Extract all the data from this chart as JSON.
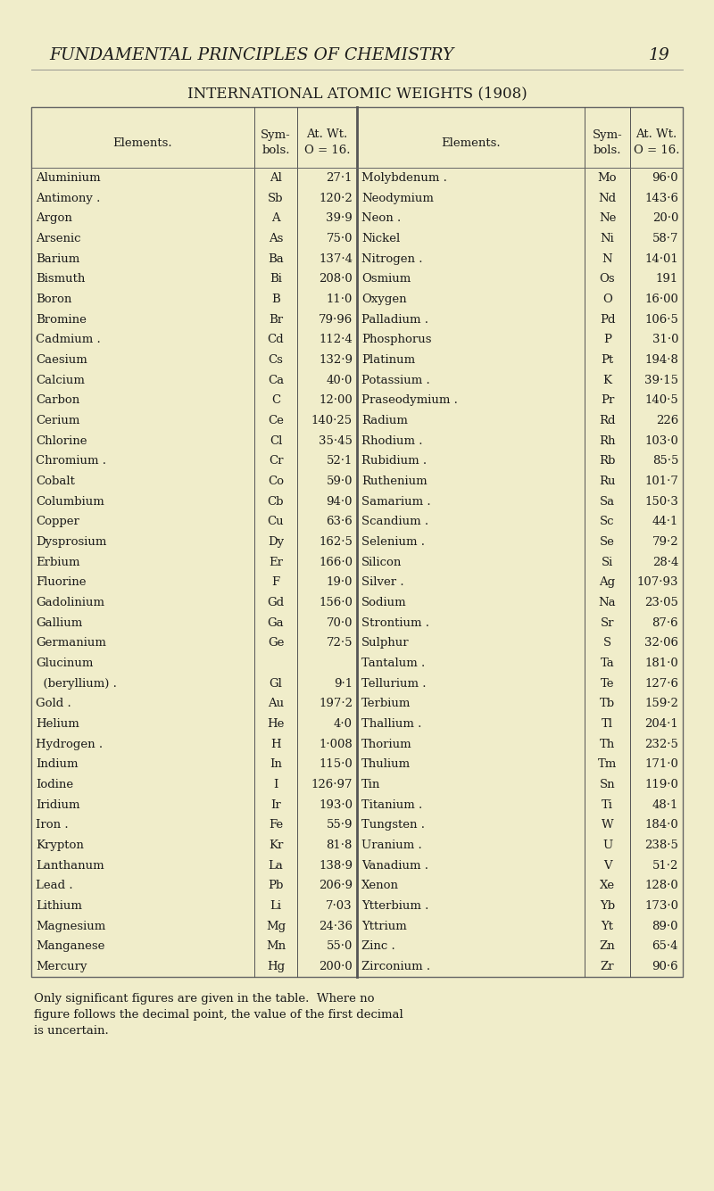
{
  "bg_color": "#f0edca",
  "page_title": "FUNDAMENTAL PRINCIPLES OF CHEMISTRY",
  "page_number": "19",
  "table_title": "INTERNATIONAL ATOMIC WEIGHTS (1908)",
  "left_data": [
    [
      "Aluminium",
      ".",
      "Al",
      "27·1"
    ],
    [
      "Antimony .",
      ".",
      "Sb",
      "120·2"
    ],
    [
      "Argon",
      ". .",
      "A",
      "39·9"
    ],
    [
      "Arsenic",
      ". .",
      "As",
      "75·0"
    ],
    [
      "Barium",
      ". .",
      "Ba",
      "137·4"
    ],
    [
      "Bismuth",
      ". .",
      "Bi",
      "208·0"
    ],
    [
      "Boron",
      ". .",
      "B",
      "11·0"
    ],
    [
      "Bromine",
      ". .",
      "Br",
      "79·96"
    ],
    [
      "Cadmium .",
      ".",
      "Cd",
      "112·4"
    ],
    [
      "Caesium",
      ". .",
      "Cs",
      "132·9"
    ],
    [
      "Calcium",
      ". .",
      "Ca",
      "40·0"
    ],
    [
      "Carbon",
      ". .",
      "C",
      "12·00"
    ],
    [
      "Cerium",
      ". .",
      "Ce",
      "140·25"
    ],
    [
      "Chlorine",
      ". .",
      "Cl",
      "35·45"
    ],
    [
      "Chromium .",
      ".",
      "Cr",
      "52·1"
    ],
    [
      "Cobalt",
      ".",
      "Co",
      "59·0"
    ],
    [
      "Columbium",
      ".",
      "Cb",
      "94·0"
    ],
    [
      "Copper",
      ". .",
      "Cu",
      "63·6"
    ],
    [
      "Dysprosium",
      ".",
      "Dy",
      "162·5"
    ],
    [
      "Erbium",
      ". .",
      "Er",
      "166·0"
    ],
    [
      "Fluorine",
      ". .",
      "F",
      "19·0"
    ],
    [
      "Gadolinium",
      ".",
      "Gd",
      "156·0"
    ],
    [
      "Gallium",
      ". .",
      "Ga",
      "70·0"
    ],
    [
      "Germanium",
      ".",
      "Ge",
      "72·5"
    ],
    [
      "Glucinum",
      "",
      "",
      ""
    ],
    [
      "  (beryllium) .",
      ".",
      "Gl",
      "9·1"
    ],
    [
      "Gold .",
      ". .",
      "Au",
      "197·2"
    ],
    [
      "Helium",
      ". .",
      "He",
      "4·0"
    ],
    [
      "Hydrogen .",
      ".",
      "H",
      "1·008"
    ],
    [
      "Indium",
      ". .",
      "In",
      "115·0"
    ],
    [
      "Iodine",
      ". .",
      "I",
      "126·97"
    ],
    [
      "Iridium",
      ". .",
      "Ir",
      "193·0"
    ],
    [
      "Iron .",
      ". .",
      "Fe",
      "55·9"
    ],
    [
      "Krypton",
      ".",
      "Kr",
      "81·8"
    ],
    [
      "Lanthanum",
      ".",
      "La",
      "138·9"
    ],
    [
      "Lead .",
      ". .",
      "Pb",
      "206·9"
    ],
    [
      "Lithium",
      ". .",
      "Li",
      "7·03"
    ],
    [
      "Magnesium",
      ".",
      "Mg",
      "24·36"
    ],
    [
      "Manganese",
      ".",
      "Mn",
      "55·0"
    ],
    [
      "Mercury",
      ". .",
      "Hg",
      "200·0"
    ]
  ],
  "right_data": [
    [
      "Molybdenum .",
      ".",
      "Mo",
      "96·0"
    ],
    [
      "Neodymium",
      ".",
      "Nd",
      "143·6"
    ],
    [
      "Neon .",
      ". .",
      "Ne",
      "20·0"
    ],
    [
      "Nickel",
      ". .",
      "Ni",
      "58·7"
    ],
    [
      "Nitrogen .",
      ".",
      "N",
      "14·01"
    ],
    [
      "Osmium",
      ". .",
      "Os",
      "191"
    ],
    [
      "Oxygen",
      ". .",
      "O",
      "16·00"
    ],
    [
      "Palladium .",
      ".",
      "Pd",
      "106·5"
    ],
    [
      "Phosphorus",
      ".",
      "P",
      "31·0"
    ],
    [
      "Platinum",
      ". .",
      "Pt",
      "194·8"
    ],
    [
      "Potassium .",
      ".",
      "K",
      "39·15"
    ],
    [
      "Praseodymium .",
      ".",
      "Pr",
      "140·5"
    ],
    [
      "Radium",
      ". .",
      "Rd",
      "226"
    ],
    [
      "Rhodium .",
      ".",
      "Rh",
      "103·0"
    ],
    [
      "Rubidium .",
      ".",
      "Rb",
      "85·5"
    ],
    [
      "Ruthenium",
      ".",
      "Ru",
      "101·7"
    ],
    [
      "Samarium .",
      ".",
      "Sa",
      "150·3"
    ],
    [
      "Scandium .",
      ".",
      "Sc",
      "44·1"
    ],
    [
      "Selenium .",
      ".",
      "Se",
      "79·2"
    ],
    [
      "Silicon",
      ". .",
      "Si",
      "28·4"
    ],
    [
      "Silver .",
      ". .",
      "Ag",
      "107·93"
    ],
    [
      "Sodium",
      ". .",
      "Na",
      "23·05"
    ],
    [
      "Strontium .",
      ".",
      "Sr",
      "87·6"
    ],
    [
      "Sulphur",
      ". .",
      "S",
      "32·06"
    ],
    [
      "Tantalum .",
      ".",
      "Ta",
      "181·0"
    ],
    [
      "Tellurium .",
      ".",
      "Te",
      "127·6"
    ],
    [
      "Terbium",
      ". .",
      "Tb",
      "159·2"
    ],
    [
      "Thallium .",
      ".",
      "Tl",
      "204·1"
    ],
    [
      "Thorium",
      ". .",
      "Th",
      "232·5"
    ],
    [
      "Thulium",
      ". .",
      "Tm",
      "171·0"
    ],
    [
      "Tin",
      ". .",
      "Sn",
      "119·0"
    ],
    [
      "Titanium .",
      ".",
      "Ti",
      "48·1"
    ],
    [
      "Tungsten .",
      ".",
      "W",
      "184·0"
    ],
    [
      "Uranium .",
      ".",
      "U",
      "238·5"
    ],
    [
      "Vanadium .",
      ".",
      "V",
      "51·2"
    ],
    [
      "Xenon",
      ". .",
      "Xe",
      "128·0"
    ],
    [
      "Ytterbium .",
      ".",
      "Yb",
      "173·0"
    ],
    [
      "Yttrium",
      ". .",
      "Yt",
      "89·0"
    ],
    [
      "Zinc .",
      ". .",
      "Zn",
      "65·4"
    ],
    [
      "Zirconium .",
      ".",
      "Zr",
      "90·6"
    ]
  ],
  "footer_lines": [
    "Only significant figures are given in the table.  Where no",
    "figure follows the decimal point, the value of the first decimal",
    "is uncertain."
  ]
}
